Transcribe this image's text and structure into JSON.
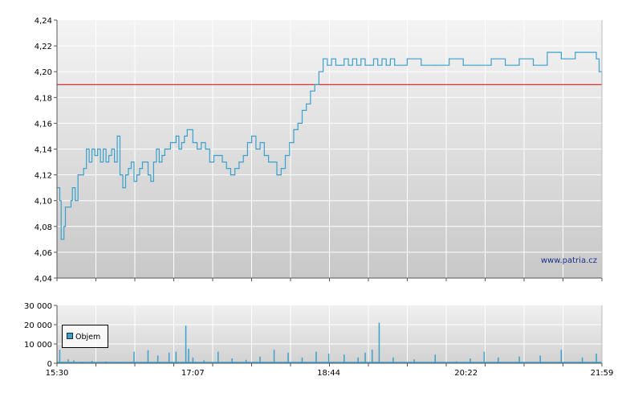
{
  "chart_data": [
    {
      "type": "line",
      "y_ticks": [
        "4,24",
        "4,22",
        "4,20",
        "4,18",
        "4,16",
        "4,14",
        "4,12",
        "4,10",
        "4,08",
        "4,06",
        "4,04"
      ],
      "ylim": [
        4.04,
        4.24
      ],
      "xlim": [
        "15:30",
        "21:59"
      ],
      "grid": true,
      "watermark": "www.patria.cz",
      "reference_line": {
        "value": 4.19,
        "color": "#cc0000"
      },
      "series": [
        {
          "color": "#3aa0cc",
          "x": [
            "15:30",
            "15:32",
            "15:33",
            "15:35",
            "15:36",
            "15:38",
            "15:40",
            "15:41",
            "15:43",
            "15:45",
            "15:47",
            "15:49",
            "15:51",
            "15:53",
            "15:55",
            "15:57",
            "15:59",
            "16:01",
            "16:03",
            "16:05",
            "16:07",
            "16:09",
            "16:11",
            "16:13",
            "16:15",
            "16:17",
            "16:19",
            "16:21",
            "16:23",
            "16:25",
            "16:27",
            "16:29",
            "16:31",
            "16:33",
            "16:35",
            "16:37",
            "16:39",
            "16:41",
            "16:43",
            "16:45",
            "16:47",
            "16:49",
            "16:51",
            "16:53",
            "16:55",
            "16:57",
            "16:59",
            "17:01",
            "17:03",
            "17:05",
            "17:07",
            "17:10",
            "17:13",
            "17:16",
            "17:19",
            "17:22",
            "17:25",
            "17:28",
            "17:31",
            "17:34",
            "17:37",
            "17:40",
            "17:43",
            "17:46",
            "17:49",
            "17:52",
            "17:55",
            "17:58",
            "18:01",
            "18:04",
            "18:07",
            "18:10",
            "18:13",
            "18:16",
            "18:19",
            "18:22",
            "18:25",
            "18:28",
            "18:31",
            "18:34",
            "18:37",
            "18:40",
            "18:43",
            "18:46",
            "18:49",
            "18:52",
            "18:55",
            "18:58",
            "19:01",
            "19:04",
            "19:07",
            "19:10",
            "19:13",
            "19:16",
            "19:19",
            "19:22",
            "19:25",
            "19:28",
            "19:31",
            "19:40",
            "19:50",
            "20:00",
            "20:10",
            "20:20",
            "20:30",
            "20:40",
            "20:50",
            "21:00",
            "21:10",
            "21:20",
            "21:30",
            "21:40",
            "21:50",
            "21:55",
            "21:57",
            "21:59"
          ],
          "values": [
            4.11,
            4.1,
            4.07,
            4.08,
            4.095,
            4.095,
            4.1,
            4.11,
            4.1,
            4.12,
            4.12,
            4.125,
            4.14,
            4.13,
            4.14,
            4.135,
            4.14,
            4.13,
            4.14,
            4.13,
            4.135,
            4.14,
            4.13,
            4.15,
            4.12,
            4.11,
            4.12,
            4.125,
            4.13,
            4.115,
            4.12,
            4.125,
            4.13,
            4.13,
            4.12,
            4.115,
            4.13,
            4.14,
            4.13,
            4.135,
            4.14,
            4.14,
            4.145,
            4.145,
            4.15,
            4.14,
            4.145,
            4.15,
            4.155,
            4.155,
            4.145,
            4.14,
            4.145,
            4.14,
            4.13,
            4.135,
            4.135,
            4.13,
            4.125,
            4.12,
            4.125,
            4.13,
            4.135,
            4.145,
            4.15,
            4.14,
            4.145,
            4.135,
            4.13,
            4.13,
            4.12,
            4.125,
            4.135,
            4.145,
            4.155,
            4.16,
            4.17,
            4.175,
            4.185,
            4.19,
            4.2,
            4.21,
            4.205,
            4.21,
            4.205,
            4.205,
            4.21,
            4.205,
            4.21,
            4.205,
            4.21,
            4.205,
            4.205,
            4.21,
            4.205,
            4.21,
            4.205,
            4.21,
            4.205,
            4.21,
            4.205,
            4.205,
            4.21,
            4.205,
            4.205,
            4.21,
            4.205,
            4.21,
            4.205,
            4.215,
            4.21,
            4.215,
            4.215,
            4.21,
            4.2,
            4.19
          ]
        }
      ]
    },
    {
      "type": "bar",
      "y_ticks": [
        "30 000",
        "20 000",
        "10 000",
        "0"
      ],
      "ylim": [
        0,
        30000
      ],
      "x_ticks": [
        "15:30",
        "17:07",
        "18:44",
        "20:22",
        "21:59"
      ],
      "xlim": [
        "15:30",
        "21:59"
      ],
      "grid": true,
      "legend": {
        "label": "Objem",
        "position": "top-left",
        "color": "#3aa0cc"
      },
      "series": [
        {
          "name": "Objem",
          "color": "#3aa0cc",
          "x": [
            "15:32",
            "15:38",
            "15:42",
            "15:48",
            "15:55",
            "16:05",
            "16:15",
            "16:25",
            "16:35",
            "16:42",
            "16:50",
            "16:55",
            "17:02",
            "17:04",
            "17:07",
            "17:15",
            "17:25",
            "17:35",
            "17:45",
            "17:55",
            "18:05",
            "18:15",
            "18:25",
            "18:35",
            "18:44",
            "18:55",
            "19:05",
            "19:10",
            "19:15",
            "19:20",
            "19:30",
            "19:45",
            "20:00",
            "20:15",
            "20:25",
            "20:35",
            "20:45",
            "21:00",
            "21:15",
            "21:30",
            "21:45",
            "21:55"
          ],
          "values": [
            7000,
            2000,
            1500,
            800,
            1200,
            900,
            600,
            6000,
            6800,
            4000,
            5500,
            6000,
            19500,
            7500,
            3000,
            1500,
            6000,
            2500,
            1800,
            3500,
            7000,
            5500,
            3000,
            6000,
            5000,
            4500,
            3000,
            5500,
            7000,
            21000,
            3000,
            2000,
            4500,
            1000,
            2500,
            6000,
            3000,
            3500,
            4000,
            7000,
            3000,
            5000
          ]
        }
      ]
    }
  ]
}
